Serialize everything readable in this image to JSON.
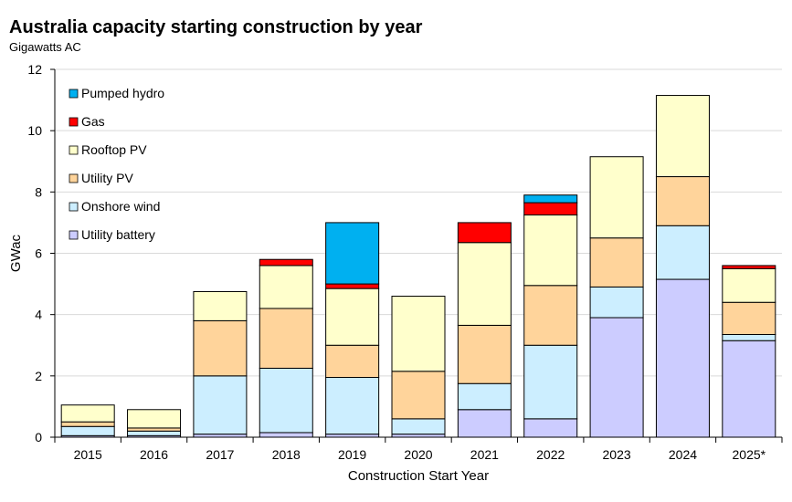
{
  "chart_data": {
    "type": "bar",
    "stacked": true,
    "title": "Australia capacity starting construction by year",
    "subtitle": "Gigawatts AC",
    "xlabel": "Construction Start Year",
    "ylabel": "GWac",
    "ylim": [
      0,
      12
    ],
    "yticks": [
      "0",
      "2",
      "4",
      "6",
      "8",
      "10",
      "12"
    ],
    "grid": true,
    "legend_position": "top-left",
    "categories": [
      "2015",
      "2016",
      "2017",
      "2018",
      "2019",
      "2020",
      "2021",
      "2022",
      "2023",
      "2024",
      "2025*"
    ],
    "series": [
      {
        "name": "Utility battery",
        "color": "#ccccff",
        "values": [
          0.05,
          0.05,
          0.1,
          0.15,
          0.1,
          0.1,
          0.9,
          0.6,
          3.9,
          5.15,
          3.15
        ]
      },
      {
        "name": "Onshore wind",
        "color": "#cceeff",
        "values": [
          0.3,
          0.15,
          1.9,
          2.1,
          1.85,
          0.5,
          0.85,
          2.4,
          1.0,
          1.75,
          0.2
        ]
      },
      {
        "name": "Utility PV",
        "color": "#ffd49b",
        "values": [
          0.15,
          0.1,
          1.8,
          1.95,
          1.05,
          1.55,
          1.9,
          1.95,
          1.6,
          1.6,
          1.05
        ]
      },
      {
        "name": "Rooftop PV",
        "color": "#ffffcc",
        "values": [
          0.55,
          0.6,
          0.95,
          1.4,
          1.85,
          2.45,
          2.7,
          2.3,
          2.65,
          2.65,
          1.1
        ]
      },
      {
        "name": "Gas",
        "color": "#ff0000",
        "values": [
          0,
          0,
          0,
          0.2,
          0.15,
          0,
          0.65,
          0.4,
          0,
          0,
          0.1
        ]
      },
      {
        "name": "Pumped hydro",
        "color": "#00b0f0",
        "values": [
          0,
          0,
          0,
          0,
          2.0,
          0,
          0,
          0.25,
          0,
          0,
          0
        ]
      }
    ]
  }
}
